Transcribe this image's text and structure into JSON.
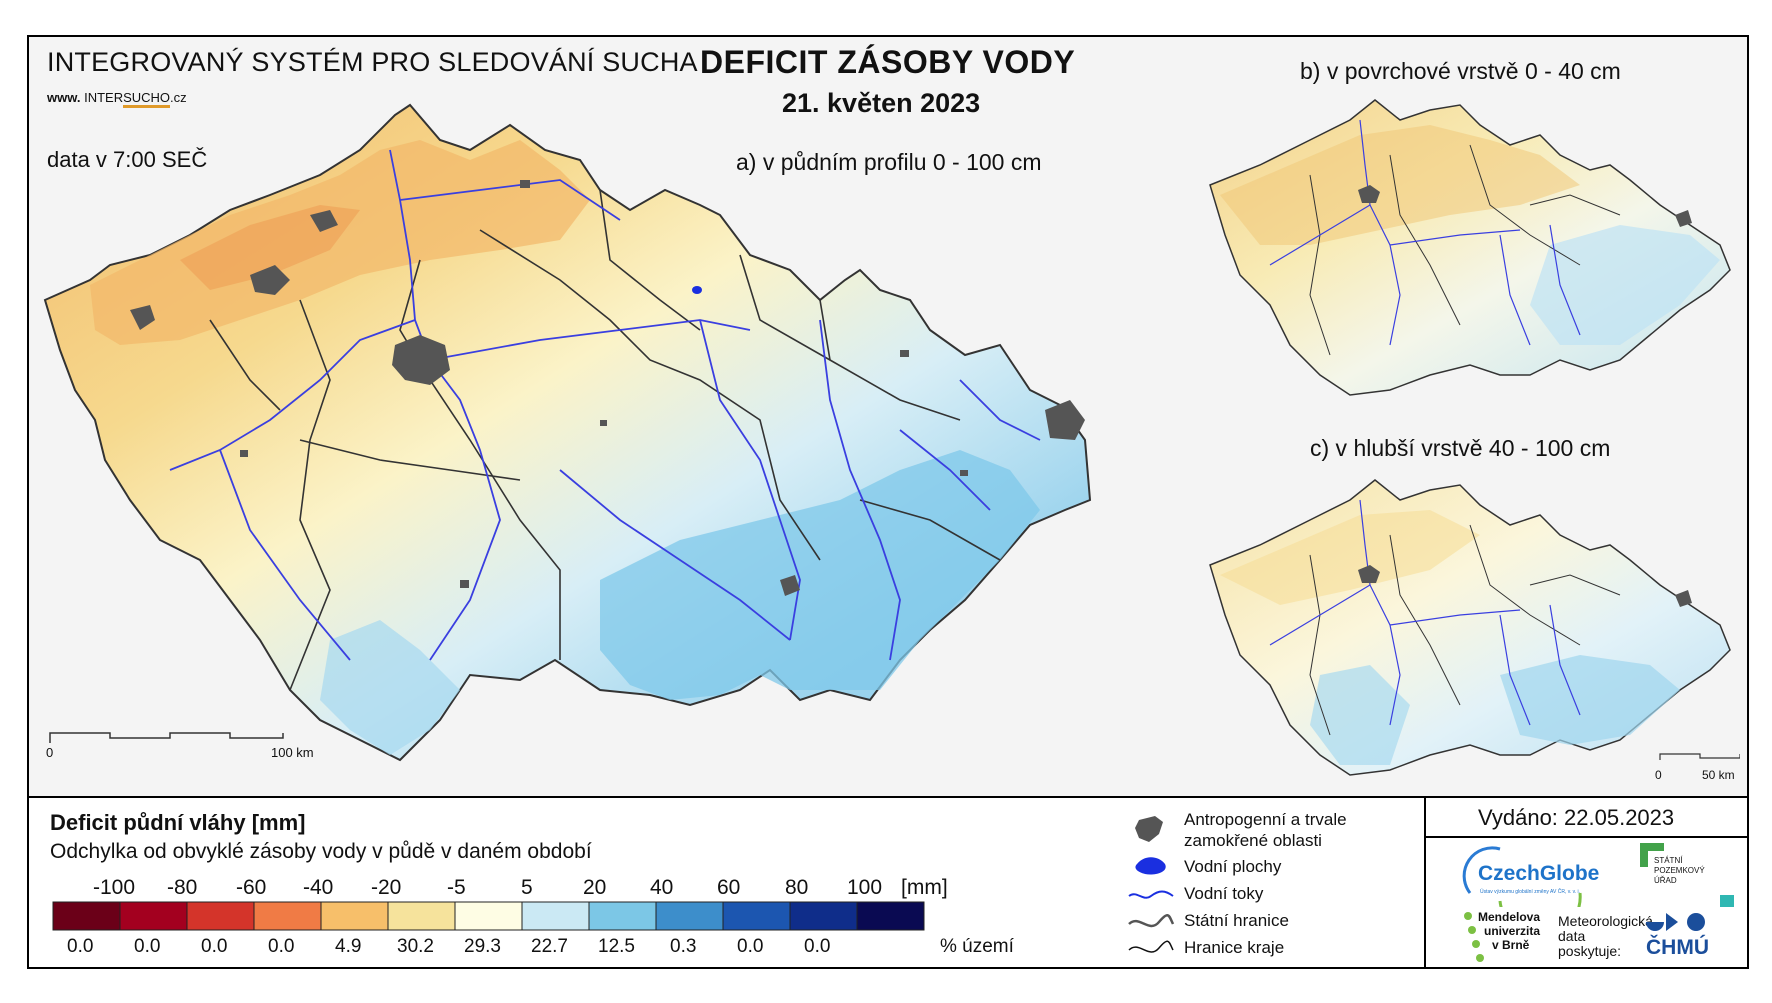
{
  "header": {
    "system_title": "INTEGROVANÝ SYSTÉM PRO SLEDOVÁNÍ SUCHA",
    "website_prefix": "www.",
    "website_inter": "INTER",
    "website_sucho": "SUCHO",
    "website_suffix": ".cz",
    "data_time": "data v 7:00 SEČ",
    "main_title": "DEFICIT ZÁSOBY VODY",
    "date": "21. květen 2023"
  },
  "maps": {
    "a_title": "a) v půdním profilu 0 - 100 cm",
    "b_title": "b) v povrchové vrstvě 0 - 40 cm",
    "c_title": "c) v hlubší vrstvě 40 - 100 cm",
    "scale_main": {
      "zero": "0",
      "end": "100 km"
    },
    "scale_small": {
      "zero": "0",
      "end": "50 km"
    }
  },
  "legend": {
    "title": "Deficit půdní vláhy  [mm]",
    "subtitle": "Odchylka od obvyklé zásoby vody v půdě v daném období",
    "scale_labels": [
      "-100",
      "-80",
      "-60",
      "-40",
      "-20",
      "-5",
      "5",
      "20",
      "40",
      "60",
      "80",
      "100"
    ],
    "unit": "[mm]",
    "colors": [
      "#6b0018",
      "#a3001f",
      "#d4342a",
      "#f07b45",
      "#f7bf6a",
      "#f6e39c",
      "#fefde4",
      "#cbe9f4",
      "#7cc7e6",
      "#3d8ecb",
      "#1c56b0",
      "#0f2d8a",
      "#0a0a52"
    ],
    "percentages": [
      "0.0",
      "0.0",
      "0.0",
      "0.0",
      "4.9",
      "30.2",
      "29.3",
      "22.7",
      "12.5",
      "0.3",
      "0.0",
      "0.0"
    ],
    "percent_unit": "% území"
  },
  "symbols": {
    "anthropogenic": "Antropogenní a trvale zamokřené oblasti",
    "anthropogenic_line1": "Antropogenní a trvale",
    "anthropogenic_line2": "zamokřené oblasti",
    "water_bodies": "Vodní plochy",
    "water_courses": "Vodní toky",
    "state_border": "Státní hranice",
    "region_border": "Hranice kraje"
  },
  "issued": "Vydáno: 22.05.2023",
  "providers": {
    "czechglobe": "CzechGlobe",
    "czechglobe_small": "Ústav výzkumu globální změny AV ČR, v. v. i.",
    "spu_line1": "STÁTNÍ",
    "spu_line2": "POZEMKOVÝ",
    "spu_line3": "ÚŘAD",
    "mendel_line1": "Mendelova",
    "mendel_line2": "univerzita",
    "mendel_line3": "v Brně",
    "meteo_line1": "Meteorologická",
    "meteo_line2": "data",
    "meteo_line3": "poskytuje:",
    "chmu": "ČHMÚ"
  }
}
